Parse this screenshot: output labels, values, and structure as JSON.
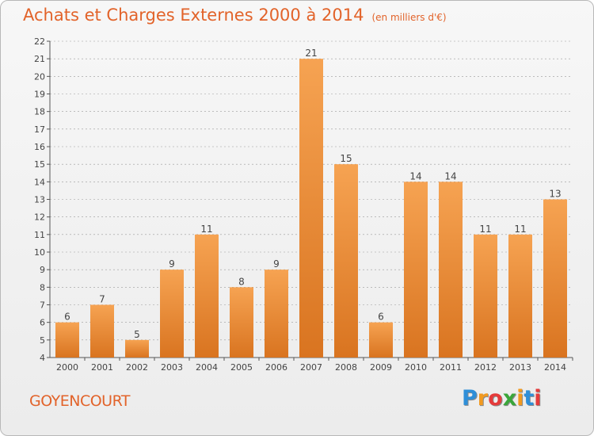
{
  "header": {
    "title": "Achats et Charges Externes 2000 à 2014",
    "unit": "(en milliers d'€)"
  },
  "footer": {
    "town": "GOYENCOURT",
    "logo_letters": [
      "P",
      "r",
      "o",
      "x",
      "i",
      "t",
      "i"
    ],
    "logo_colors": [
      "#2f8fd8",
      "#f29a1f",
      "#e53b3b",
      "#3aa63a",
      "#f29a1f",
      "#2f8fd8",
      "#e53b3b"
    ]
  },
  "colors": {
    "bar_light": "#f6a352",
    "bar_dark": "#d97420",
    "title": "#e2632a",
    "grid": "#9a9a9a"
  },
  "chart_data": {
    "type": "bar",
    "title": "Achats et Charges Externes 2000 à 2014",
    "subtitle": "(en milliers d'€)",
    "xlabel": "",
    "ylabel": "",
    "categories": [
      "2000",
      "2001",
      "2002",
      "2003",
      "2004",
      "2005",
      "2006",
      "2007",
      "2008",
      "2009",
      "2010",
      "2011",
      "2012",
      "2013",
      "2014"
    ],
    "values": [
      6,
      7,
      5,
      9,
      11,
      8,
      9,
      21,
      15,
      6,
      14,
      14,
      11,
      11,
      13
    ],
    "ylim": [
      4,
      22
    ],
    "yticks": [
      4,
      5,
      6,
      7,
      8,
      9,
      10,
      11,
      12,
      13,
      14,
      15,
      16,
      17,
      18,
      19,
      20,
      21,
      22
    ],
    "grid": true,
    "data_labels": true
  }
}
